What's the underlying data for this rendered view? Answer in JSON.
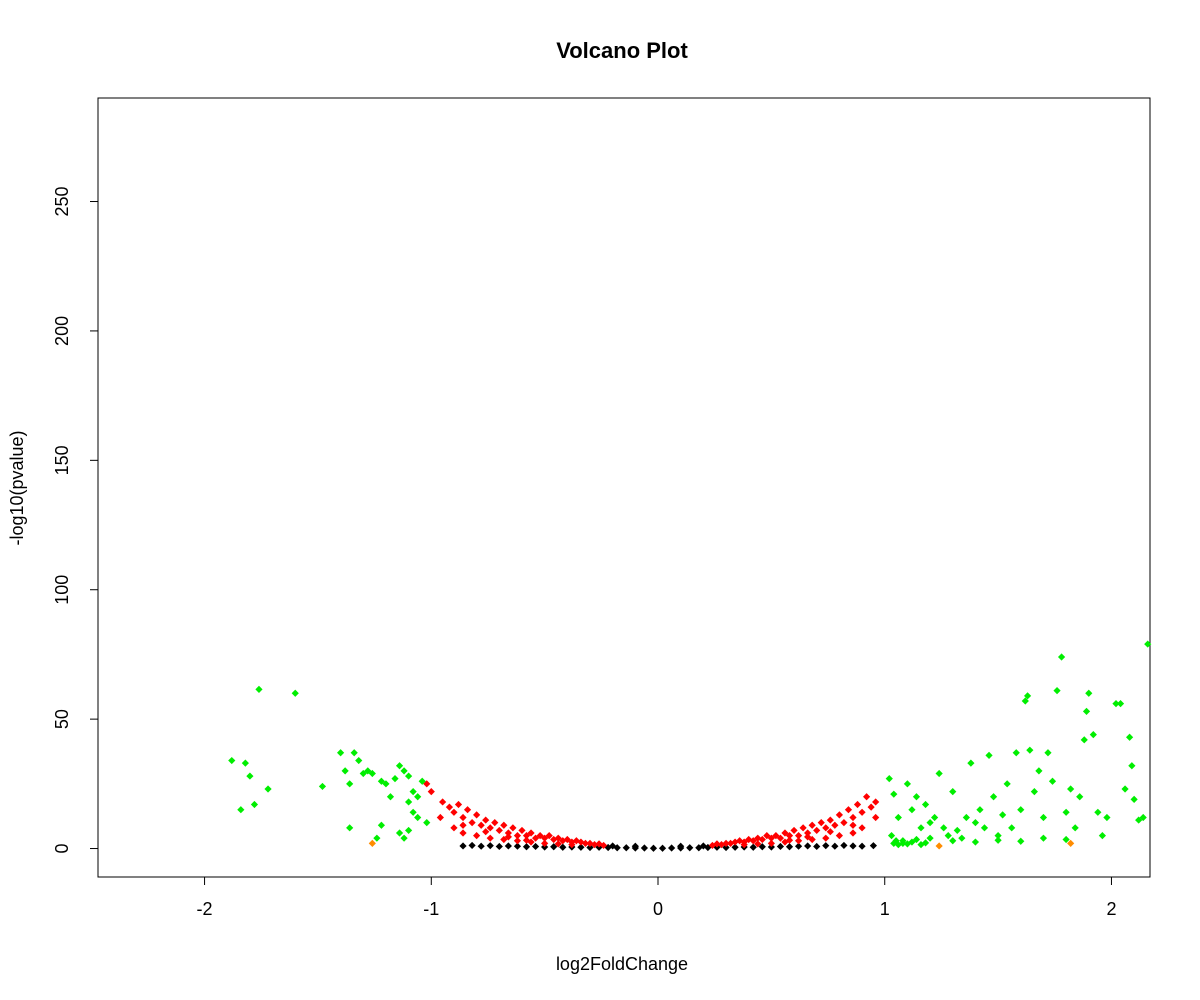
{
  "chart_data": {
    "type": "scatter",
    "title": "Volcano Plot",
    "xlabel": "log2FoldChange",
    "ylabel": "-log10(pvalue)",
    "xlim": [
      -2.47,
      2.17
    ],
    "ylim": [
      -11,
      290
    ],
    "x_ticks": [
      -2,
      -1,
      0,
      1,
      2
    ],
    "x_tick_labels": [
      "-2",
      "-1",
      "0",
      "1",
      "2"
    ],
    "y_ticks": [
      0,
      50,
      100,
      150,
      200,
      250
    ],
    "y_tick_labels": [
      "0",
      "50",
      "100",
      "150",
      "200",
      "250"
    ],
    "grid": false,
    "legend": "none",
    "colors": {
      "not_significant": "#000000",
      "significant_pvalue": "#ff0000",
      "large_fold_change": "#00ee00",
      "large_fold_change_low_significance": "#ff8c00"
    },
    "series": [
      {
        "color": "#000000",
        "points": [
          [
            -0.86,
            1.0
          ],
          [
            -0.82,
            1.2
          ],
          [
            -0.78,
            0.9
          ],
          [
            -0.74,
            1.1
          ],
          [
            -0.7,
            0.8
          ],
          [
            -0.66,
            1.0
          ],
          [
            -0.62,
            0.9
          ],
          [
            -0.58,
            0.7
          ],
          [
            -0.54,
            0.8
          ],
          [
            -0.5,
            0.6
          ],
          [
            -0.46,
            0.7
          ],
          [
            -0.42,
            0.5
          ],
          [
            -0.38,
            0.6
          ],
          [
            -0.34,
            0.5
          ],
          [
            -0.3,
            0.4
          ],
          [
            -0.26,
            0.5
          ],
          [
            -0.22,
            0.4
          ],
          [
            -0.18,
            0.3
          ],
          [
            -0.14,
            0.3
          ],
          [
            -0.1,
            0.2
          ],
          [
            -0.06,
            0.2
          ],
          [
            -0.02,
            0.1
          ],
          [
            0.02,
            0.1
          ],
          [
            0.06,
            0.2
          ],
          [
            0.1,
            0.2
          ],
          [
            0.14,
            0.3
          ],
          [
            0.18,
            0.3
          ],
          [
            0.22,
            0.4
          ],
          [
            0.26,
            0.5
          ],
          [
            0.3,
            0.4
          ],
          [
            0.34,
            0.5
          ],
          [
            0.38,
            0.6
          ],
          [
            0.42,
            0.5
          ],
          [
            0.46,
            0.7
          ],
          [
            0.5,
            0.6
          ],
          [
            0.54,
            0.8
          ],
          [
            0.58,
            0.7
          ],
          [
            0.62,
            0.9
          ],
          [
            0.66,
            1.0
          ],
          [
            0.7,
            0.8
          ],
          [
            0.74,
            1.1
          ],
          [
            0.78,
            0.9
          ],
          [
            0.82,
            1.2
          ],
          [
            0.86,
            1.0
          ],
          [
            0.9,
            0.9
          ],
          [
            0.95,
            1.1
          ],
          [
            -0.2,
            1.0
          ],
          [
            0.2,
            1.0
          ],
          [
            -0.1,
            0.9
          ],
          [
            0.1,
            0.9
          ]
        ]
      },
      {
        "color": "#ff0000",
        "points": [
          [
            -1.02,
            25.0
          ],
          [
            -1.0,
            22.0
          ],
          [
            -0.95,
            18.0
          ],
          [
            -0.92,
            16.0
          ],
          [
            -0.9,
            14.0
          ],
          [
            -0.88,
            17.0
          ],
          [
            -0.86,
            12.0
          ],
          [
            -0.84,
            15.0
          ],
          [
            -0.82,
            10.0
          ],
          [
            -0.8,
            13.0
          ],
          [
            -0.78,
            9.0
          ],
          [
            -0.76,
            11.0
          ],
          [
            -0.74,
            8.0
          ],
          [
            -0.72,
            10.0
          ],
          [
            -0.7,
            7.0
          ],
          [
            -0.68,
            9.0
          ],
          [
            -0.66,
            6.0
          ],
          [
            -0.64,
            8.0
          ],
          [
            -0.62,
            5.0
          ],
          [
            -0.6,
            7.0
          ],
          [
            -0.58,
            5.0
          ],
          [
            -0.56,
            6.0
          ],
          [
            -0.54,
            4.0
          ],
          [
            -0.52,
            5.0
          ],
          [
            -0.5,
            4.0
          ],
          [
            -0.48,
            5.0
          ],
          [
            -0.46,
            3.5
          ],
          [
            -0.44,
            4.0
          ],
          [
            -0.42,
            3.0
          ],
          [
            -0.4,
            3.5
          ],
          [
            -0.38,
            2.5
          ],
          [
            -0.36,
            3.0
          ],
          [
            -0.34,
            2.5
          ],
          [
            -0.32,
            2.0
          ],
          [
            -0.3,
            2.0
          ],
          [
            -0.28,
            1.5
          ],
          [
            -0.26,
            1.8
          ],
          [
            -0.24,
            1.2
          ],
          [
            -0.9,
            8.0
          ],
          [
            -0.86,
            6.0
          ],
          [
            -0.8,
            5.0
          ],
          [
            -0.74,
            4.0
          ],
          [
            -0.68,
            3.5
          ],
          [
            -0.62,
            3.0
          ],
          [
            -0.56,
            2.5
          ],
          [
            -0.5,
            2.0
          ],
          [
            -0.44,
            1.8
          ],
          [
            -0.38,
            1.5
          ],
          [
            -0.96,
            12.0
          ],
          [
            -0.86,
            9.0
          ],
          [
            -0.76,
            6.5
          ],
          [
            -0.66,
            4.5
          ],
          [
            -0.58,
            3.2
          ],
          [
            0.24,
            1.2
          ],
          [
            0.26,
            1.8
          ],
          [
            0.28,
            1.5
          ],
          [
            0.3,
            2.0
          ],
          [
            0.32,
            2.0
          ],
          [
            0.34,
            2.5
          ],
          [
            0.36,
            3.0
          ],
          [
            0.38,
            2.5
          ],
          [
            0.4,
            3.5
          ],
          [
            0.42,
            3.0
          ],
          [
            0.44,
            4.0
          ],
          [
            0.46,
            3.5
          ],
          [
            0.48,
            5.0
          ],
          [
            0.5,
            4.0
          ],
          [
            0.52,
            5.0
          ],
          [
            0.54,
            4.0
          ],
          [
            0.56,
            6.0
          ],
          [
            0.58,
            5.0
          ],
          [
            0.6,
            7.0
          ],
          [
            0.62,
            5.0
          ],
          [
            0.64,
            8.0
          ],
          [
            0.66,
            6.0
          ],
          [
            0.68,
            9.0
          ],
          [
            0.7,
            7.0
          ],
          [
            0.72,
            10.0
          ],
          [
            0.74,
            8.0
          ],
          [
            0.76,
            11.0
          ],
          [
            0.78,
            9.0
          ],
          [
            0.8,
            13.0
          ],
          [
            0.82,
            10.0
          ],
          [
            0.84,
            15.0
          ],
          [
            0.86,
            12.0
          ],
          [
            0.88,
            17.0
          ],
          [
            0.9,
            14.0
          ],
          [
            0.92,
            20.0
          ],
          [
            0.94,
            16.0
          ],
          [
            0.96,
            18.0
          ],
          [
            0.38,
            1.5
          ],
          [
            0.44,
            1.8
          ],
          [
            0.5,
            2.0
          ],
          [
            0.56,
            2.5
          ],
          [
            0.62,
            3.0
          ],
          [
            0.68,
            3.5
          ],
          [
            0.74,
            4.0
          ],
          [
            0.8,
            5.0
          ],
          [
            0.86,
            6.0
          ],
          [
            0.9,
            8.0
          ],
          [
            0.58,
            3.2
          ],
          [
            0.66,
            4.5
          ],
          [
            0.76,
            6.5
          ],
          [
            0.86,
            9.0
          ],
          [
            0.96,
            12.0
          ]
        ]
      },
      {
        "color": "#00ee00",
        "points": [
          [
            -1.88,
            34.0
          ],
          [
            -1.84,
            15.0
          ],
          [
            -1.82,
            33.0
          ],
          [
            -1.78,
            17.0
          ],
          [
            -1.8,
            28.0
          ],
          [
            -1.76,
            61.5
          ],
          [
            -1.72,
            23.0
          ],
          [
            -1.6,
            60.0
          ],
          [
            -1.48,
            24.0
          ],
          [
            -1.4,
            37.0
          ],
          [
            -1.38,
            30.0
          ],
          [
            -1.36,
            25.0
          ],
          [
            -1.34,
            37.0
          ],
          [
            -1.32,
            34.0
          ],
          [
            -1.3,
            29.0
          ],
          [
            -1.28,
            30.0
          ],
          [
            -1.26,
            29.0
          ],
          [
            -1.22,
            26.0
          ],
          [
            -1.2,
            25.0
          ],
          [
            -1.18,
            20.0
          ],
          [
            -1.16,
            27.0
          ],
          [
            -1.14,
            32.0
          ],
          [
            -1.12,
            30.0
          ],
          [
            -1.1,
            28.0
          ],
          [
            -1.1,
            18.0
          ],
          [
            -1.08,
            22.0
          ],
          [
            -1.06,
            20.0
          ],
          [
            -1.04,
            26.0
          ],
          [
            -1.02,
            10.0
          ],
          [
            -1.14,
            6.0
          ],
          [
            -1.12,
            4.0
          ],
          [
            -1.1,
            7.0
          ],
          [
            -1.22,
            9.0
          ],
          [
            -1.24,
            4.0
          ],
          [
            -1.36,
            8.0
          ],
          [
            -1.06,
            12.0
          ],
          [
            -1.08,
            14.0
          ],
          [
            1.02,
            27.0
          ],
          [
            1.03,
            5.0
          ],
          [
            1.04,
            21.0
          ],
          [
            1.05,
            3.0
          ],
          [
            1.06,
            12.0
          ],
          [
            1.08,
            2.0
          ],
          [
            1.1,
            25.0
          ],
          [
            1.12,
            15.0
          ],
          [
            1.14,
            20.0
          ],
          [
            1.16,
            8.0
          ],
          [
            1.18,
            17.0
          ],
          [
            1.2,
            10.0
          ],
          [
            1.22,
            12.0
          ],
          [
            1.24,
            29.0
          ],
          [
            1.26,
            8.0
          ],
          [
            1.28,
            5.0
          ],
          [
            1.3,
            22.0
          ],
          [
            1.32,
            7.0
          ],
          [
            1.34,
            4.0
          ],
          [
            1.36,
            12.0
          ],
          [
            1.38,
            33.0
          ],
          [
            1.4,
            10.0
          ],
          [
            1.42,
            15.0
          ],
          [
            1.44,
            8.0
          ],
          [
            1.46,
            36.0
          ],
          [
            1.48,
            20.0
          ],
          [
            1.5,
            5.0
          ],
          [
            1.52,
            13.0
          ],
          [
            1.54,
            25.0
          ],
          [
            1.56,
            8.0
          ],
          [
            1.58,
            37.0
          ],
          [
            1.6,
            15.0
          ],
          [
            1.62,
            57.0
          ],
          [
            1.63,
            59.0
          ],
          [
            1.64,
            38.0
          ],
          [
            1.66,
            22.0
          ],
          [
            1.68,
            30.0
          ],
          [
            1.7,
            12.0
          ],
          [
            1.72,
            37.0
          ],
          [
            1.74,
            26.0
          ],
          [
            1.76,
            61.0
          ],
          [
            1.78,
            74.0
          ],
          [
            1.8,
            14.0
          ],
          [
            1.82,
            23.0
          ],
          [
            1.84,
            8.0
          ],
          [
            1.86,
            20.0
          ],
          [
            1.88,
            42.0
          ],
          [
            1.89,
            53.0
          ],
          [
            1.9,
            60.0
          ],
          [
            1.92,
            44.0
          ],
          [
            1.94,
            14.0
          ],
          [
            1.96,
            5.0
          ],
          [
            1.98,
            12.0
          ],
          [
            2.02,
            56.0
          ],
          [
            2.04,
            56.0
          ],
          [
            2.06,
            23.0
          ],
          [
            2.08,
            43.0
          ],
          [
            2.09,
            32.0
          ],
          [
            2.1,
            19.0
          ],
          [
            2.12,
            11.0
          ],
          [
            2.14,
            12.0
          ],
          [
            2.16,
            79.0
          ],
          [
            1.04,
            2.0
          ],
          [
            1.06,
            1.5
          ],
          [
            1.08,
            3.0
          ],
          [
            1.1,
            1.8
          ],
          [
            1.12,
            2.5
          ],
          [
            1.14,
            3.5
          ],
          [
            1.16,
            1.5
          ],
          [
            1.18,
            2.2
          ],
          [
            1.2,
            4.0
          ],
          [
            1.3,
            3.0
          ],
          [
            1.4,
            2.5
          ],
          [
            1.5,
            3.2
          ],
          [
            1.6,
            2.8
          ],
          [
            1.7,
            4.0
          ],
          [
            1.8,
            3.5
          ]
        ]
      },
      {
        "color": "#ff8c00",
        "points": [
          [
            -1.26,
            2.0
          ],
          [
            1.24,
            1.0
          ],
          [
            1.82,
            2.0
          ]
        ]
      }
    ]
  }
}
